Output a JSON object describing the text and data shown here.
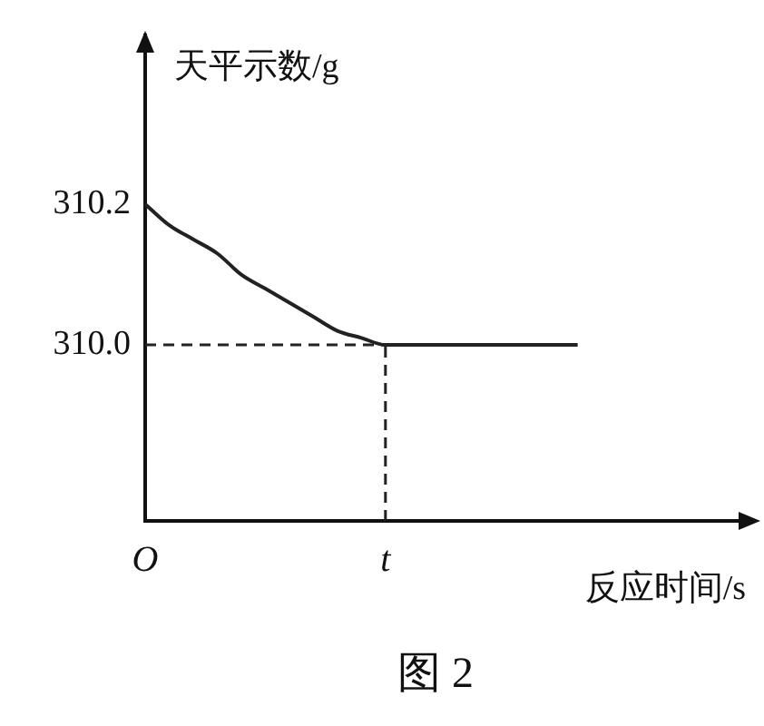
{
  "chart_data": {
    "type": "line",
    "xlabel": "反应时间/s",
    "ylabel": "天平示数/g",
    "categories": [
      "O",
      null,
      null,
      null,
      null,
      null,
      null,
      null,
      null,
      null,
      "t",
      null,
      null,
      null,
      null,
      null,
      null,
      null,
      null,
      null,
      null,
      null,
      null,
      null,
      null,
      null
    ],
    "series": [
      {
        "color": "#222222",
        "values": [
          310.2,
          310.17,
          310.15,
          310.13,
          310.1,
          310.08,
          310.06,
          310.04,
          310.02,
          310.01,
          310.0,
          310.0,
          310.0,
          310.0,
          310.0,
          310.0,
          310.0,
          310.0,
          310.0,
          null,
          null,
          null,
          null,
          null,
          null,
          null
        ]
      }
    ],
    "ylim": [
      309.75,
      310.44
    ],
    "yticks": [
      {
        "value": 310.0,
        "label": "310.0"
      },
      310.2
    ],
    "ref_lines": [
      {
        "axis": "y",
        "value": 310.0,
        "line_style": "dashed",
        "color": "#222222"
      },
      {
        "axis": "x",
        "value": "t",
        "line_style": "dashed",
        "color": "#222222"
      }
    ],
    "annotations": [
      "图 2"
    ],
    "grid": false,
    "legend": false,
    "marker": "none",
    "line_style": "solid"
  }
}
